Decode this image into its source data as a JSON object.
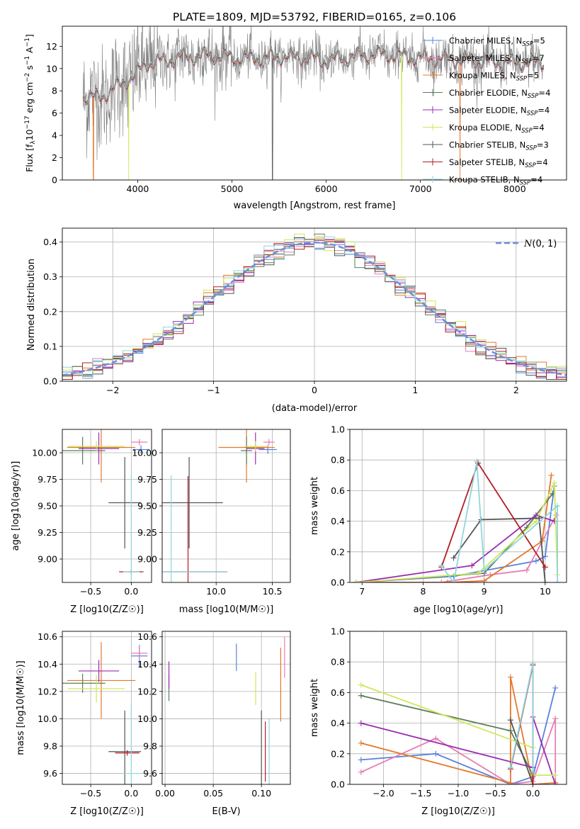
{
  "colors": {
    "Chabrier MILES": "#5a82dc",
    "Salpeter MILES": "#e67db4",
    "Kroupa MILES": "#e4782a",
    "Chabrier ELODIE": "#5a7d5a",
    "Salpeter ELODIE": "#9b2bb0",
    "Kroupa ELODIE": "#cfe85a",
    "Chabrier STELIB": "#555555",
    "Salpeter STELIB": "#b01e24",
    "Kroupa STELIB": "#8fd6dc",
    "normal_curve": "#6a8fdc"
  },
  "chart_data": [
    {
      "id": "spectrum",
      "type": "line",
      "title": "PLATE=1809, MJD=53792, FIBERID=0165, z=0.106",
      "xlabel": "wavelength [Angstrom, rest frame]",
      "ylabel_main": "Flux [f",
      "ylabel_sub": "λ",
      "ylabel_rest": "10",
      "ylabel_exp1": "−17",
      "ylabel_mid": " erg cm",
      "ylabel_exp2": "−2",
      "ylabel_mid2": " s",
      "ylabel_exp3": "−1",
      "ylabel_end": " A",
      "ylabel_exp4": "−1",
      "ylabel_close": "]",
      "xlim": [
        3200,
        8550
      ],
      "ylim": [
        0,
        13.8
      ],
      "xticks": [
        "4000",
        "5000",
        "6000",
        "7000",
        "8000"
      ],
      "yticks": [
        "0",
        "2",
        "4",
        "6",
        "8",
        "10",
        "12"
      ],
      "legend_position": "right",
      "legend": [
        {
          "name": "Chabrier MILES",
          "nssp": "5"
        },
        {
          "name": "Salpeter MILES",
          "nssp": "7"
        },
        {
          "name": "Kroupa MILES",
          "nssp": "5"
        },
        {
          "name": "Chabrier ELODIE",
          "nssp": "4"
        },
        {
          "name": "Salpeter ELODIE",
          "nssp": "4"
        },
        {
          "name": "Kroupa ELODIE",
          "nssp": "4"
        },
        {
          "name": "Chabrier STELIB",
          "nssp": "3"
        },
        {
          "name": "Salpeter STELIB",
          "nssp": "4"
        },
        {
          "name": "Kroupa STELIB",
          "nssp": "4"
        }
      ],
      "nssp_label": "N",
      "nssp_sub": "SSP",
      "continuum_anchors": {
        "wavelength": [
          3420,
          3600,
          3800,
          3950,
          4100,
          4300,
          4500,
          4800,
          5000,
          5200,
          5500,
          5800,
          6000,
          6200,
          6500,
          6700,
          6900,
          7200,
          7500,
          7800,
          8100,
          8300
        ],
        "flux": [
          7.5,
          7.4,
          8.5,
          9.3,
          10.5,
          10.7,
          11.1,
          11.2,
          11.0,
          10.9,
          11.1,
          11.0,
          10.7,
          11.0,
          11.3,
          11.2,
          11.0,
          10.9,
          10.8,
          10.6,
          10.5,
          10.6
        ]
      },
      "model_drops": [
        {
          "series": "Kroupa MILES",
          "wavelength": 3530
        },
        {
          "series": "Kroupa ELODIE",
          "wavelength": 3905
        },
        {
          "series": "Chabrier STELIB",
          "wavelength": 5430
        },
        {
          "series": "Kroupa ELODIE",
          "wavelength": 6800
        },
        {
          "series": "Kroupa MILES",
          "wavelength": 7420
        }
      ]
    },
    {
      "id": "residual_histogram",
      "type": "area",
      "xlabel": "(data-model)/error",
      "ylabel": "Normed distribution",
      "xlim": [
        -2.5,
        2.5
      ],
      "ylim": [
        0,
        0.44
      ],
      "xticks": [
        "−2",
        "−1",
        "0",
        "1",
        "2"
      ],
      "yticks": [
        "0.0",
        "0.1",
        "0.2",
        "0.3",
        "0.4"
      ],
      "grid": true,
      "legend_position": "top-right",
      "legend_label_prefix": "N",
      "legend_label_suffix": "(0, 1)",
      "bin_width": 0.1,
      "normal_curve": {
        "mean": 0,
        "sigma": 1
      }
    },
    {
      "id": "age_vs_Z",
      "type": "scatter",
      "xlabel": "Z [log10(Z/Z☉)]",
      "ylabel": "age  [log10(age/yr)]",
      "xlim": [
        -0.85,
        0.25
      ],
      "ylim": [
        8.78,
        10.22
      ],
      "xticks": [
        "−0.5",
        "0.0"
      ],
      "yticks": [
        "9.00",
        "9.25",
        "9.50",
        "9.75",
        "10.00"
      ],
      "grid": true,
      "points": [
        {
          "series": "Chabrier MILES",
          "x": 0.12,
          "y": 10.03,
          "xerr": 0.1,
          "yerr": 0.04
        },
        {
          "series": "Salpeter MILES",
          "x": 0.1,
          "y": 10.1,
          "xerr": 0.1,
          "yerr": 0.03
        },
        {
          "series": "Kroupa MILES",
          "x": -0.37,
          "y": 10.05,
          "xerr": 0.42,
          "yerr": 0.33
        },
        {
          "series": "Chabrier ELODIE",
          "x": -0.6,
          "y": 10.02,
          "xerr": 0.28,
          "yerr": 0.13
        },
        {
          "series": "Salpeter ELODIE",
          "x": -0.4,
          "y": 10.04,
          "xerr": 0.25,
          "yerr": 0.15
        },
        {
          "series": "Kroupa ELODIE",
          "x": -0.43,
          "y": 10.06,
          "xerr": 0.35,
          "yerr": 0.05
        },
        {
          "series": "Chabrier STELIB",
          "x": -0.08,
          "y": 9.53,
          "xerr": 0.2,
          "yerr": 0.43
        },
        {
          "series": "Salpeter STELIB",
          "x": 0.0,
          "y": 8.88,
          "xerr": 0.15,
          "yerr": 0.02
        },
        {
          "series": "Kroupa STELIB",
          "x": 0.0,
          "y": 8.88,
          "xerr": 0.1,
          "yerr": 0.91
        }
      ]
    },
    {
      "id": "age_vs_mass",
      "type": "scatter",
      "xlabel": "mass [log10(M/M☉)]",
      "ylabel": "",
      "xlim": [
        9.52,
        10.66
      ],
      "ylim": [
        8.78,
        10.22
      ],
      "xticks": [
        "10.0",
        "10.5"
      ],
      "yticks": [
        "9.00",
        "9.25",
        "9.50",
        "9.75",
        "10.00"
      ],
      "grid": true,
      "points": [
        {
          "series": "Chabrier MILES",
          "x": 10.46,
          "y": 10.03,
          "xerr": 0.08,
          "yerr": 0.04
        },
        {
          "series": "Salpeter MILES",
          "x": 10.47,
          "y": 10.1,
          "xerr": 0.05,
          "yerr": 0.03
        },
        {
          "series": "Kroupa MILES",
          "x": 10.27,
          "y": 10.05,
          "xerr": 0.25,
          "yerr": 0.33
        },
        {
          "series": "Chabrier ELODIE",
          "x": 10.27,
          "y": 10.02,
          "xerr": 0.05,
          "yerr": 0.13
        },
        {
          "series": "Salpeter ELODIE",
          "x": 10.35,
          "y": 10.04,
          "xerr": 0.08,
          "yerr": 0.15
        },
        {
          "series": "Kroupa ELODIE",
          "x": 10.35,
          "y": 10.06,
          "xerr": 0.1,
          "yerr": 0.05
        },
        {
          "series": "Chabrier STELIB",
          "x": 9.76,
          "y": 9.53,
          "xerr": 0.3,
          "yerr": 0.43
        },
        {
          "series": "Salpeter STELIB",
          "x": 9.75,
          "y": 8.88,
          "xerr": 0.35,
          "yerr": 0.9
        },
        {
          "series": "Kroupa STELIB",
          "x": 9.6,
          "y": 8.88,
          "xerr": 0.5,
          "yerr": 0.91
        }
      ]
    },
    {
      "id": "weight_vs_age",
      "type": "line",
      "xlabel": "age  [log10(age/yr)]",
      "ylabel": "mass weight",
      "xlim": [
        6.8,
        10.35
      ],
      "ylim": [
        0,
        1
      ],
      "xticks": [
        "7",
        "8",
        "9",
        "10"
      ],
      "yticks": [
        "0.0",
        "0.2",
        "0.4",
        "0.6",
        "0.8",
        "1.0"
      ],
      "grid": true,
      "series": [
        {
          "name": "Chabrier MILES",
          "x": [
            6.9,
            8.5,
            9.85,
            10.0,
            10.15
          ],
          "y": [
            0.0,
            0.04,
            0.14,
            0.17,
            0.63
          ]
        },
        {
          "name": "Salpeter MILES",
          "x": [
            6.9,
            8.3,
            9.1,
            9.7,
            10.18
          ],
          "y": [
            0.0,
            0.0,
            0.05,
            0.08,
            0.44
          ]
        },
        {
          "name": "Kroupa MILES",
          "x": [
            6.9,
            8.4,
            9.0,
            9.95,
            10.1
          ],
          "y": [
            0.0,
            0.0,
            0.01,
            0.27,
            0.7
          ]
        },
        {
          "name": "Chabrier ELODIE",
          "x": [
            6.9,
            9.0,
            9.7,
            10.12
          ],
          "y": [
            0.0,
            0.06,
            0.36,
            0.58
          ]
        },
        {
          "name": "Salpeter ELODIE",
          "x": [
            6.9,
            8.8,
            9.85,
            10.15
          ],
          "y": [
            0.0,
            0.11,
            0.44,
            0.4
          ]
        },
        {
          "name": "Kroupa ELODIE",
          "x": [
            6.9,
            8.9,
            9.85,
            10.15,
            10.2
          ],
          "y": [
            0.0,
            0.06,
            0.4,
            0.65,
            0.05
          ]
        },
        {
          "name": "Chabrier STELIB",
          "x": [
            8.5,
            8.95,
            9.9,
            10.0
          ],
          "y": [
            0.16,
            0.41,
            0.42,
            0.0
          ]
        },
        {
          "name": "Salpeter STELIB",
          "x": [
            8.3,
            8.9,
            10.0
          ],
          "y": [
            0.1,
            0.78,
            0.1
          ]
        },
        {
          "name": "Kroupa STELIB",
          "x": [
            8.3,
            8.5,
            8.88,
            9.0,
            10.2,
            10.2
          ],
          "y": [
            0.11,
            0.0,
            0.79,
            0.08,
            0.5,
            0.0
          ]
        }
      ]
    },
    {
      "id": "mass_vs_Z",
      "type": "scatter",
      "xlabel": "Z [log10(Z/Z☉)]",
      "ylabel": "mass [log10(M/M☉)]",
      "xlim": [
        -0.85,
        0.25
      ],
      "ylim": [
        9.52,
        10.64
      ],
      "xticks": [
        "−0.5",
        "0.0"
      ],
      "yticks": [
        "9.6",
        "9.8",
        "10.0",
        "10.2",
        "10.4",
        "10.6"
      ],
      "grid": true,
      "points": [
        {
          "series": "Chabrier MILES",
          "x": 0.1,
          "y": 10.46,
          "xerr": 0.1,
          "yerr": 0.08
        },
        {
          "series": "Salpeter MILES",
          "x": 0.1,
          "y": 10.48,
          "xerr": 0.1,
          "yerr": 0.05
        },
        {
          "series": "Kroupa MILES",
          "x": -0.37,
          "y": 10.28,
          "xerr": 0.42,
          "yerr": 0.28
        },
        {
          "series": "Chabrier ELODIE",
          "x": -0.6,
          "y": 10.26,
          "xerr": 0.28,
          "yerr": 0.07
        },
        {
          "series": "Salpeter ELODIE",
          "x": -0.4,
          "y": 10.35,
          "xerr": 0.25,
          "yerr": 0.08
        },
        {
          "series": "Kroupa ELODIE",
          "x": -0.43,
          "y": 10.22,
          "xerr": 0.35,
          "yerr": 0.1
        },
        {
          "series": "Chabrier STELIB",
          "x": -0.08,
          "y": 9.76,
          "xerr": 0.2,
          "yerr": 0.3
        },
        {
          "series": "Salpeter STELIB",
          "x": -0.05,
          "y": 9.75,
          "xerr": 0.15,
          "yerr": 0.02
        },
        {
          "series": "Kroupa STELIB",
          "x": 0.0,
          "y": 9.6,
          "xerr": 0.1,
          "yerr": 0.5
        }
      ]
    },
    {
      "id": "mass_vs_EBV",
      "type": "scatter",
      "xlabel": "E(B-V)",
      "ylabel": "",
      "xlim": [
        -0.003,
        0.13
      ],
      "ylim": [
        9.52,
        10.64
      ],
      "xticks": [
        "0.00",
        "0.05",
        "0.10"
      ],
      "yticks": [
        "9.6",
        "9.8",
        "10.0",
        "10.2",
        "10.4",
        "10.6"
      ],
      "grid": true,
      "points": [
        {
          "series": "Chabrier MILES",
          "x": 0.074,
          "y": 10.45,
          "xerr": 0,
          "yerr": 0.1
        },
        {
          "series": "Salpeter MILES",
          "x": 0.124,
          "y": 10.45,
          "xerr": 0,
          "yerr": 0.15
        },
        {
          "series": "Kroupa MILES",
          "x": 0.12,
          "y": 10.25,
          "xerr": 0,
          "yerr": 0.27
        },
        {
          "series": "Chabrier ELODIE",
          "x": 0.004,
          "y": 10.23,
          "xerr": 0,
          "yerr": 0.1
        },
        {
          "series": "Salpeter ELODIE",
          "x": 0.004,
          "y": 10.32,
          "xerr": 0,
          "yerr": 0.1
        },
        {
          "series": "Kroupa ELODIE",
          "x": 0.094,
          "y": 10.22,
          "xerr": 0,
          "yerr": 0.12
        },
        {
          "series": "Chabrier STELIB",
          "x": 0.1,
          "y": 9.76,
          "xerr": 0,
          "yerr": 0.3
        },
        {
          "series": "Salpeter STELIB",
          "x": 0.104,
          "y": 9.76,
          "xerr": 0,
          "yerr": 0.22
        },
        {
          "series": "Kroupa STELIB",
          "x": 0.108,
          "y": 9.65,
          "xerr": 0,
          "yerr": 0.35
        }
      ]
    },
    {
      "id": "weight_vs_Z",
      "type": "line",
      "xlabel": "Z [log10(Z/Z☉)]",
      "ylabel": "mass weight",
      "xlim": [
        -2.45,
        0.45
      ],
      "ylim": [
        0,
        1
      ],
      "xticks": [
        "−2.0",
        "−1.5",
        "−1.0",
        "−0.5",
        "0.0"
      ],
      "yticks": [
        "0.0",
        "0.2",
        "0.4",
        "0.6",
        "0.8",
        "1.0"
      ],
      "grid": true,
      "series": [
        {
          "name": "Chabrier MILES",
          "x": [
            -2.3,
            -1.3,
            -0.3,
            0.0,
            0.3
          ],
          "y": [
            0.16,
            0.2,
            0.0,
            0.05,
            0.63
          ]
        },
        {
          "name": "Salpeter MILES",
          "x": [
            -2.3,
            -1.3,
            -0.3,
            0.0,
            0.3,
            0.3
          ],
          "y": [
            0.08,
            0.3,
            0.0,
            0.02,
            0.43,
            0.01
          ]
        },
        {
          "name": "Kroupa MILES",
          "x": [
            -2.3,
            -0.3,
            -0.3,
            0.0,
            0.3
          ],
          "y": [
            0.27,
            0.01,
            0.7,
            0.0,
            0.01
          ]
        },
        {
          "name": "Chabrier ELODIE",
          "x": [
            -2.3,
            -0.3,
            0.0
          ],
          "y": [
            0.58,
            0.35,
            0.06
          ]
        },
        {
          "name": "Salpeter ELODIE",
          "x": [
            -2.3,
            0.0,
            0.0,
            0.3
          ],
          "y": [
            0.4,
            0.11,
            0.44,
            0.0
          ]
        },
        {
          "name": "Kroupa ELODIE",
          "x": [
            -2.3,
            0.0,
            0.0,
            0.3
          ],
          "y": [
            0.65,
            0.24,
            0.06,
            0.06
          ]
        },
        {
          "name": "Chabrier STELIB",
          "x": [
            -0.3,
            0.0
          ],
          "y": [
            0.42,
            0.0
          ]
        },
        {
          "name": "Salpeter STELIB",
          "x": [
            -0.3,
            0.0,
            0.0
          ],
          "y": [
            0.1,
            0.78,
            0.0
          ]
        },
        {
          "name": "Kroupa STELIB",
          "x": [
            -0.3,
            0.0,
            0.0
          ],
          "y": [
            0.11,
            0.79,
            0.08
          ]
        }
      ]
    }
  ]
}
